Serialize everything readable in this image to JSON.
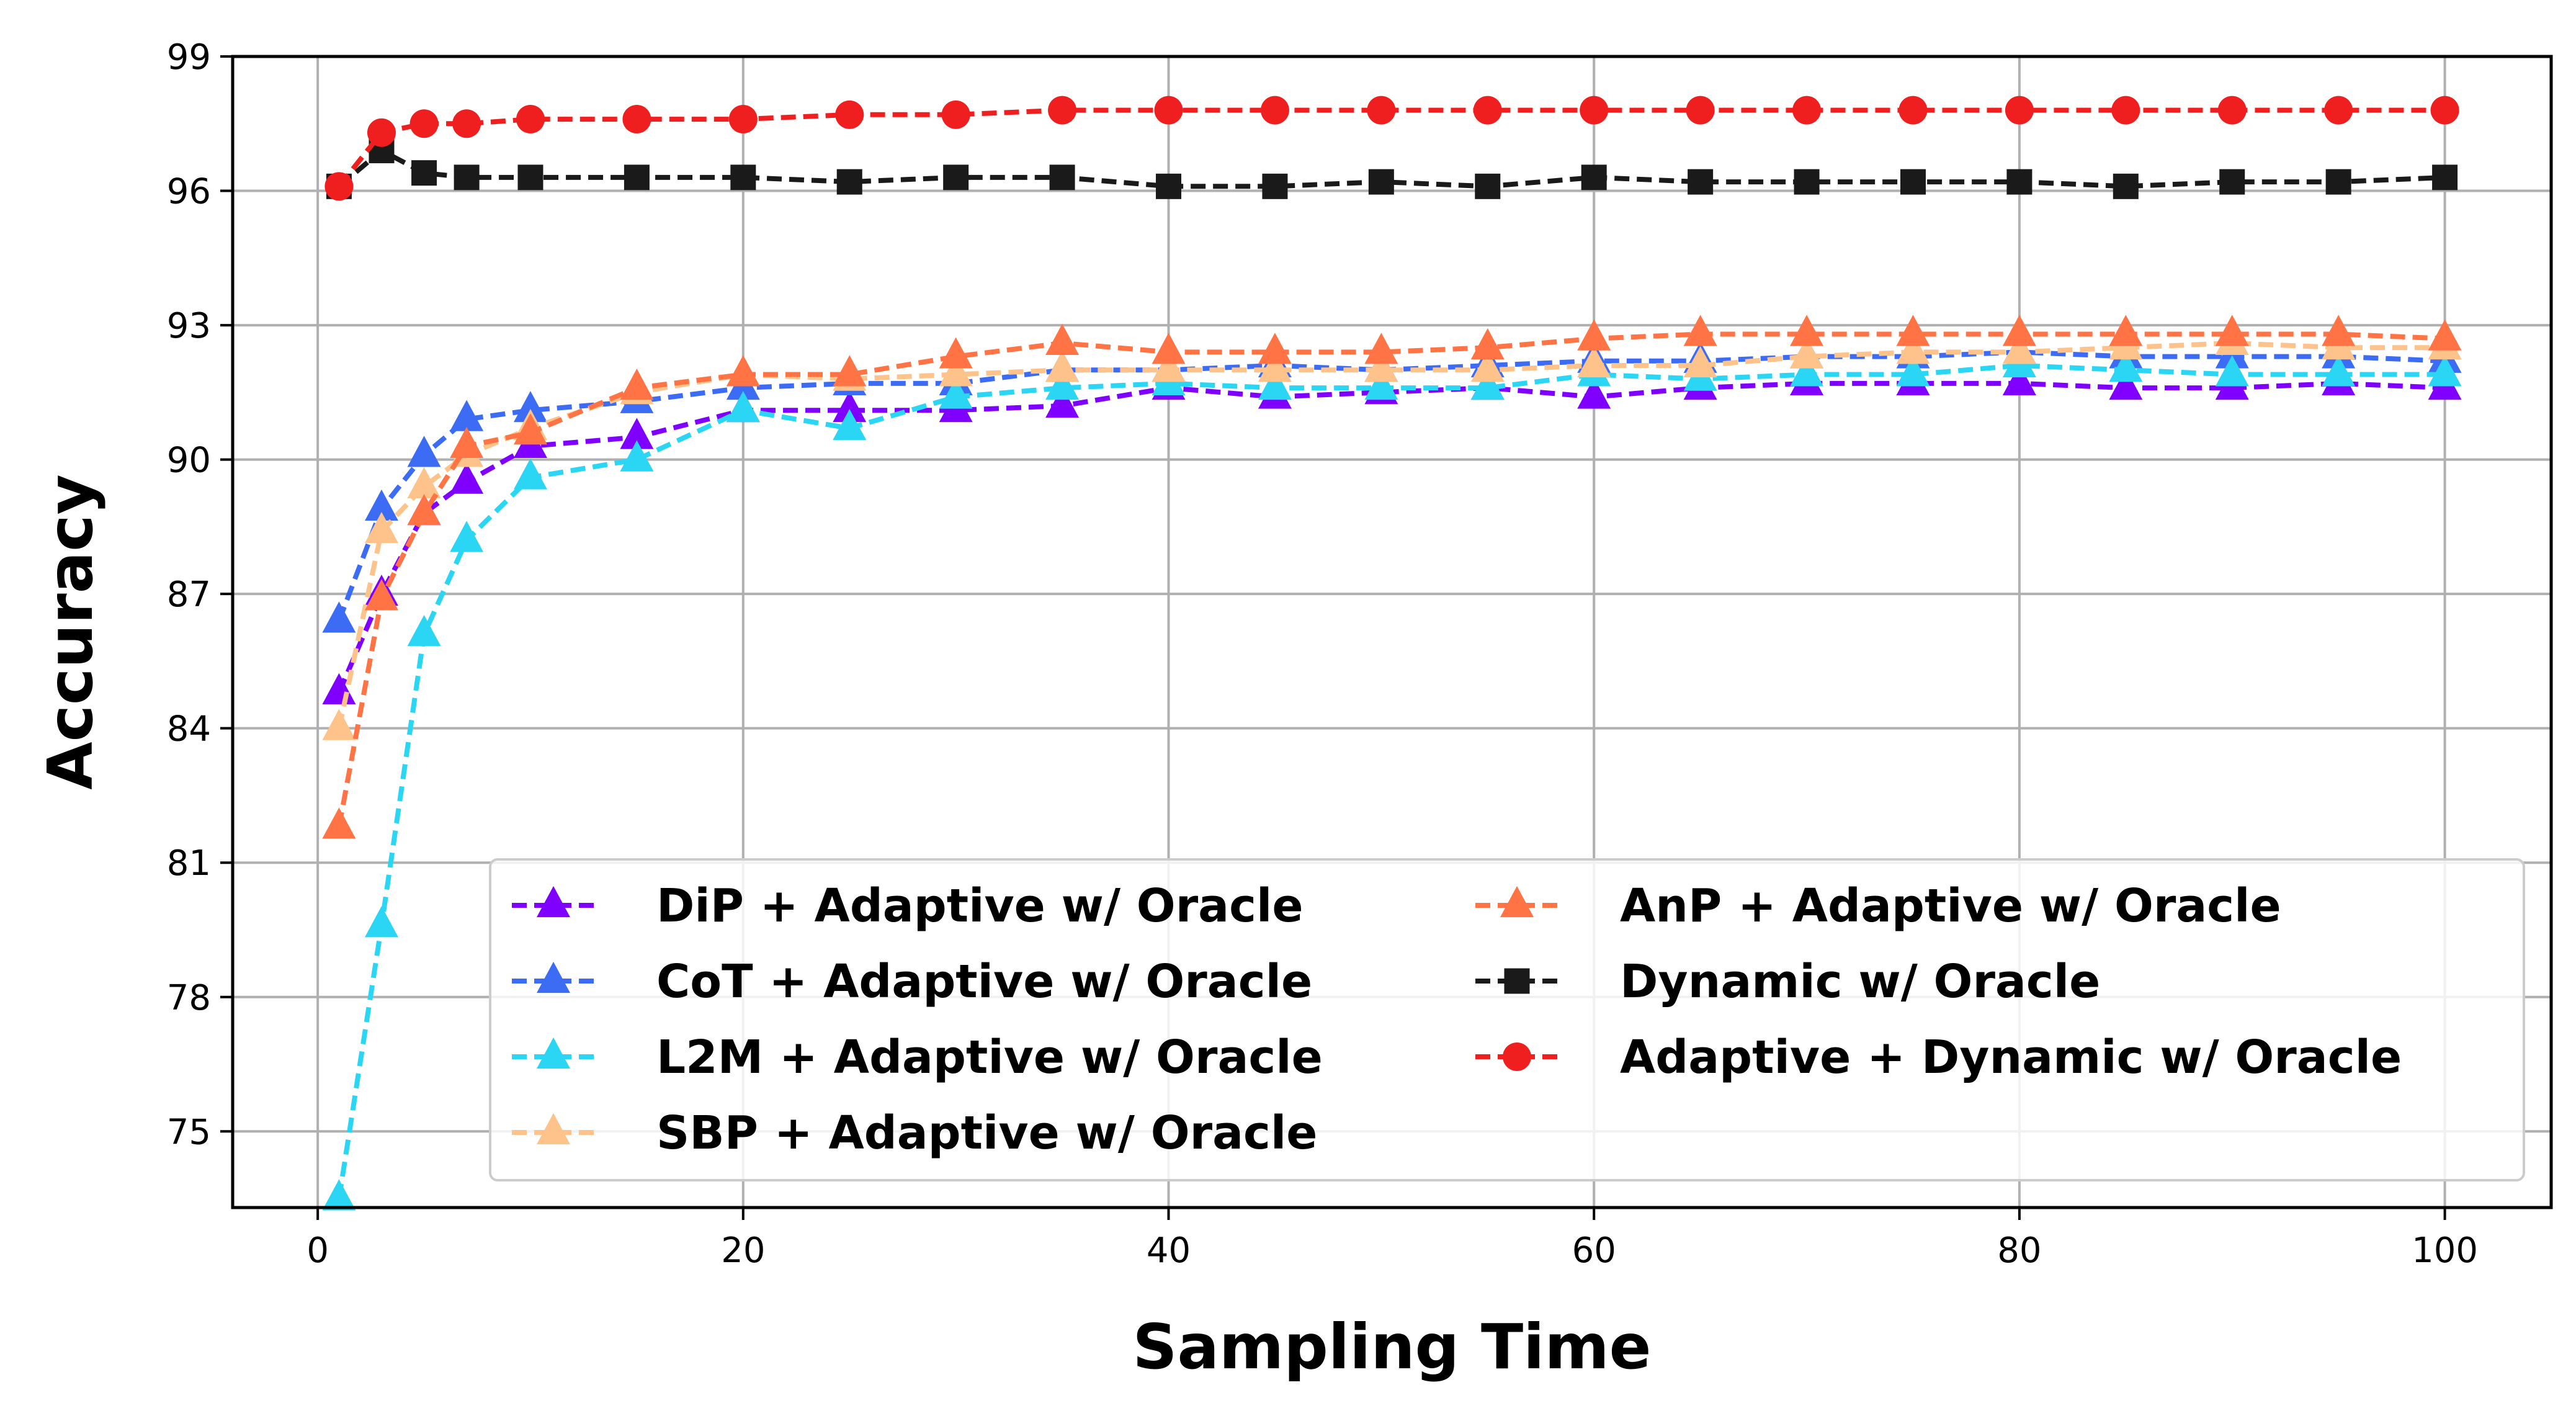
{
  "chart_data": {
    "type": "line",
    "title": "",
    "xlabel": "Sampling Time",
    "ylabel": "Accuracy",
    "xlim": [
      -4,
      105
    ],
    "ylim": [
      73.3,
      99
    ],
    "xticks": [
      0,
      20,
      40,
      60,
      80,
      100
    ],
    "yticks": [
      75,
      78,
      81,
      84,
      87,
      90,
      93,
      96,
      99
    ],
    "grid": true,
    "legend_position": "lower-right",
    "legend_columns": 2,
    "x": [
      1,
      3,
      5,
      7,
      10,
      15,
      20,
      25,
      30,
      35,
      40,
      45,
      50,
      55,
      60,
      65,
      70,
      75,
      80,
      85,
      90,
      95,
      100
    ],
    "series": [
      {
        "name": "DiP + Adaptive w/ Oracle",
        "color": "#7f00ff",
        "marker": "triangle",
        "values": [
          84.8,
          87.0,
          88.8,
          89.5,
          90.3,
          90.5,
          91.1,
          91.1,
          91.1,
          91.2,
          91.6,
          91.4,
          91.5,
          91.6,
          91.4,
          91.6,
          91.7,
          91.7,
          91.7,
          91.6,
          91.6,
          91.7,
          91.6
        ]
      },
      {
        "name": "CoT + Adaptive w/ Oracle",
        "color": "#3b6cf3",
        "marker": "triangle",
        "values": [
          86.4,
          88.9,
          90.1,
          90.9,
          91.1,
          91.3,
          91.6,
          91.7,
          91.7,
          92.0,
          92.0,
          92.1,
          92.0,
          92.1,
          92.2,
          92.2,
          92.3,
          92.3,
          92.4,
          92.3,
          92.3,
          92.3,
          92.2
        ]
      },
      {
        "name": "L2M + Adaptive w/ Oracle",
        "color": "#2bd6f4",
        "marker": "triangle",
        "values": [
          73.5,
          79.6,
          86.1,
          88.2,
          89.6,
          90.0,
          91.1,
          90.7,
          91.4,
          91.6,
          91.7,
          91.6,
          91.6,
          91.6,
          91.9,
          91.8,
          91.9,
          91.9,
          92.1,
          92.0,
          91.9,
          91.9,
          91.9
        ]
      },
      {
        "name": "SBP + Adaptive w/ Oracle",
        "color": "#fec38a",
        "marker": "triangle",
        "values": [
          84.0,
          88.4,
          89.4,
          90.1,
          90.7,
          91.5,
          91.9,
          91.8,
          91.9,
          92.0,
          92.0,
          92.0,
          92.0,
          92.0,
          92.1,
          92.1,
          92.3,
          92.4,
          92.4,
          92.5,
          92.6,
          92.5,
          92.5
        ]
      },
      {
        "name": "AnP + Adaptive w/ Oracle",
        "color": "#ff7344",
        "marker": "triangle",
        "values": [
          81.8,
          86.9,
          88.8,
          90.3,
          90.6,
          91.6,
          91.9,
          91.9,
          92.3,
          92.6,
          92.4,
          92.4,
          92.4,
          92.5,
          92.7,
          92.8,
          92.8,
          92.8,
          92.8,
          92.8,
          92.8,
          92.8,
          92.7
        ]
      },
      {
        "name": "Dynamic w/ Oracle",
        "color": "#1a1a1a",
        "marker": "square",
        "values": [
          96.1,
          96.9,
          96.4,
          96.3,
          96.3,
          96.3,
          96.3,
          96.2,
          96.3,
          96.3,
          96.1,
          96.1,
          96.2,
          96.1,
          96.3,
          96.2,
          96.2,
          96.2,
          96.2,
          96.1,
          96.2,
          96.2,
          96.3
        ]
      },
      {
        "name": "Adaptive + Dynamic w/ Oracle",
        "color": "#f01f1f",
        "marker": "circle",
        "values": [
          96.1,
          97.3,
          97.5,
          97.5,
          97.6,
          97.6,
          97.6,
          97.7,
          97.7,
          97.8,
          97.8,
          97.8,
          97.8,
          97.8,
          97.8,
          97.8,
          97.8,
          97.8,
          97.8,
          97.8,
          97.8,
          97.8,
          97.8
        ]
      }
    ]
  }
}
